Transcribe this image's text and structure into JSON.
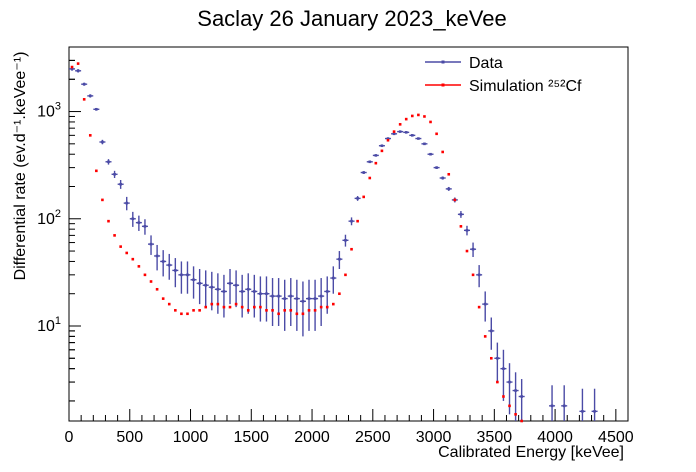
{
  "chart_data": {
    "type": "scatter",
    "title": "Saclay 26 January 2023_keVee",
    "xlabel": "Calibrated Energy [keVee]",
    "ylabel": "Differential rate (ev.d⁻¹.keVee⁻¹)",
    "xlim": [
      0,
      4600
    ],
    "ylim": [
      1.3,
      4000
    ],
    "yscale": "log",
    "grid": false,
    "legend_position": "top-right",
    "x_ticks": [
      0,
      500,
      1000,
      1500,
      2000,
      2500,
      3000,
      3500,
      4000,
      4500
    ],
    "x_tick_labels": [
      "0",
      "500",
      "1000",
      "1500",
      "2000",
      "2500",
      "3000",
      "3500",
      "4000",
      "4500"
    ],
    "y_ticks": [
      10,
      100,
      1000
    ],
    "y_tick_labels": [
      "10",
      "10",
      "10"
    ],
    "y_tick_exponents": [
      "1",
      "2",
      "3"
    ],
    "series": [
      {
        "name": "Data",
        "color": "#4b4ba6",
        "x": [
          25,
          75,
          125,
          175,
          225,
          275,
          325,
          375,
          425,
          475,
          525,
          575,
          625,
          675,
          725,
          775,
          825,
          875,
          925,
          975,
          1025,
          1075,
          1125,
          1175,
          1225,
          1275,
          1325,
          1375,
          1425,
          1475,
          1525,
          1575,
          1625,
          1675,
          1725,
          1775,
          1825,
          1875,
          1925,
          1975,
          2025,
          2075,
          2125,
          2175,
          2225,
          2275,
          2325,
          2375,
          2425,
          2475,
          2525,
          2575,
          2625,
          2675,
          2725,
          2775,
          2825,
          2875,
          2925,
          2975,
          3025,
          3075,
          3125,
          3175,
          3225,
          3275,
          3325,
          3375,
          3425,
          3475,
          3525,
          3575,
          3625,
          3675,
          3725,
          3975,
          4075,
          4225,
          4325
        ],
        "y": [
          2500,
          2400,
          1800,
          1400,
          1050,
          520,
          340,
          260,
          210,
          140,
          100,
          92,
          85,
          58,
          45,
          40,
          37,
          33,
          30,
          30,
          27,
          25,
          24,
          23,
          22,
          21,
          25,
          24,
          21,
          22,
          21,
          20,
          20,
          19,
          19,
          18,
          19,
          18,
          17,
          18,
          18,
          19,
          21,
          28,
          42,
          63,
          95,
          155,
          270,
          340,
          390,
          480,
          560,
          620,
          650,
          640,
          600,
          560,
          500,
          400,
          300,
          240,
          190,
          150,
          110,
          78,
          52,
          30,
          16,
          9,
          5,
          4,
          3,
          2.5,
          2.2,
          1.8,
          1.8,
          1.6,
          1.6
        ],
        "err": [
          100,
          90,
          60,
          50,
          30,
          25,
          20,
          20,
          20,
          20,
          16,
          15,
          14,
          12,
          12,
          11,
          10,
          10,
          10,
          10,
          9,
          9,
          9,
          9,
          9,
          9,
          9,
          9,
          9,
          9,
          9,
          9,
          9,
          9,
          9,
          9,
          9,
          9,
          9,
          9,
          9,
          9,
          8,
          8,
          8,
          8,
          8,
          8,
          8,
          8,
          8,
          8,
          8,
          8,
          8,
          8,
          8,
          8,
          8,
          8,
          8,
          8,
          8,
          8,
          8,
          8,
          8,
          7,
          5,
          3,
          2,
          2,
          1.5,
          1.2,
          1.0,
          1.0,
          1.0,
          1.0,
          1.0
        ]
      },
      {
        "name": "Simulation ²⁵²Cf",
        "color": "#ff0000",
        "x": [
          25,
          75,
          125,
          175,
          225,
          275,
          325,
          375,
          425,
          475,
          525,
          575,
          625,
          675,
          725,
          775,
          825,
          875,
          925,
          975,
          1025,
          1075,
          1125,
          1175,
          1225,
          1275,
          1325,
          1375,
          1425,
          1475,
          1525,
          1575,
          1625,
          1675,
          1725,
          1775,
          1825,
          1875,
          1925,
          1975,
          2025,
          2075,
          2125,
          2175,
          2225,
          2275,
          2325,
          2375,
          2425,
          2475,
          2525,
          2575,
          2625,
          2675,
          2725,
          2775,
          2825,
          2875,
          2925,
          2975,
          3025,
          3075,
          3125,
          3175,
          3225,
          3275,
          3325,
          3375,
          3425,
          3475,
          3525,
          3575,
          3625,
          3675,
          3725
        ],
        "y": [
          2600,
          2800,
          1300,
          600,
          280,
          150,
          95,
          70,
          55,
          48,
          42,
          36,
          30,
          26,
          22,
          18,
          16,
          14,
          13,
          13,
          14,
          14,
          15,
          16,
          16,
          15,
          15,
          16,
          15,
          14,
          15,
          15,
          14,
          14,
          13,
          14,
          14,
          13,
          13,
          14,
          14,
          15,
          15,
          16,
          20,
          30,
          52,
          95,
          160,
          240,
          330,
          430,
          540,
          650,
          760,
          850,
          910,
          930,
          900,
          800,
          620,
          420,
          260,
          150,
          85,
          50,
          30,
          15,
          8,
          5,
          3,
          2.2,
          1.8,
          1.5,
          1.3
        ],
        "err": [
          0,
          0,
          0,
          0,
          0,
          0,
          0,
          0,
          0,
          0,
          0,
          0,
          0,
          0,
          0,
          0,
          0,
          0,
          0,
          0,
          0,
          0,
          0,
          0,
          0,
          0,
          0,
          0,
          0,
          0,
          0,
          0,
          0,
          0,
          0,
          0,
          0,
          0,
          0,
          0,
          0,
          0,
          0,
          0,
          0,
          0,
          0,
          0,
          0,
          0,
          0,
          0,
          0,
          0,
          0,
          0,
          0,
          0,
          0,
          0,
          0,
          0,
          0,
          0,
          0,
          0,
          0,
          0,
          0,
          0,
          0,
          0,
          0,
          0,
          0
        ]
      }
    ]
  }
}
